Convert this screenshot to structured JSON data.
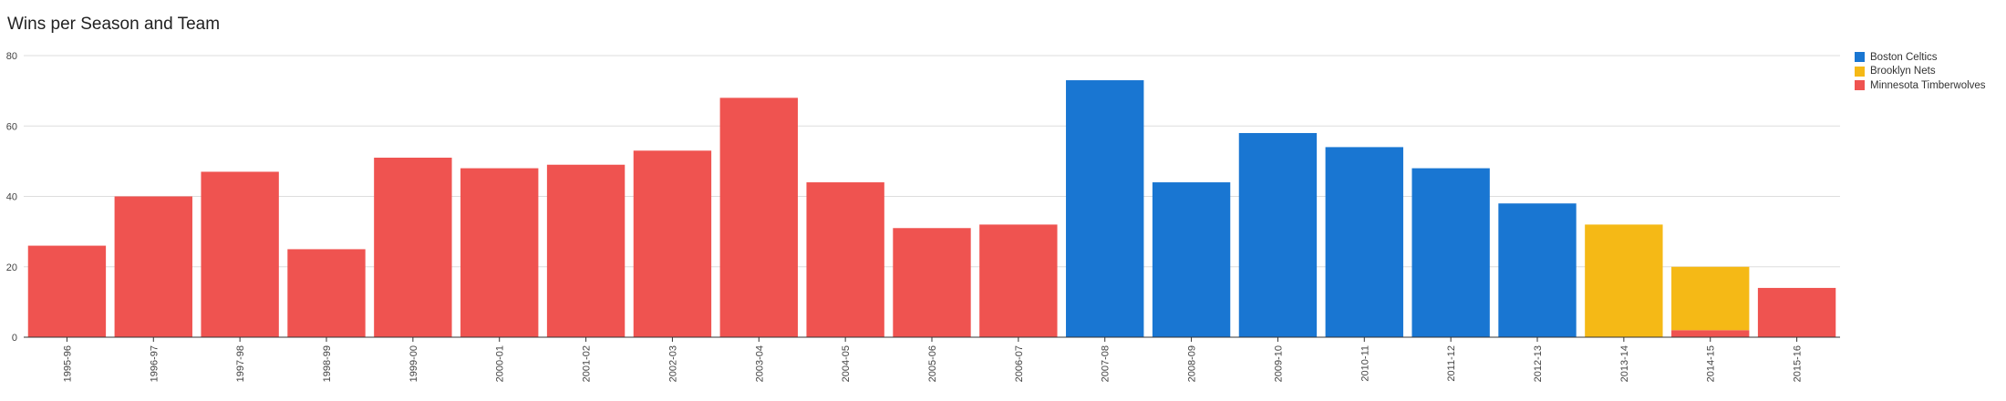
{
  "chart_data": {
    "type": "bar",
    "stacked": true,
    "title": "Wins per Season and Team",
    "xlabel": "",
    "ylabel": "",
    "ylim": [
      0,
      80
    ],
    "yticks": [
      "0",
      "20",
      "40",
      "60",
      "80"
    ],
    "grid": true,
    "legend_position": "top-right",
    "categories": [
      "1995-96",
      "1996-97",
      "1997-98",
      "1998-99",
      "1999-00",
      "2000-01",
      "2001-02",
      "2002-03",
      "2003-04",
      "2004-05",
      "2005-06",
      "2006-07",
      "2007-08",
      "2008-09",
      "2009-10",
      "2010-11",
      "2011-12",
      "2012-13",
      "2013-14",
      "2014-15",
      "2015-16"
    ],
    "series": [
      {
        "name": "Minnesota Timberwolves",
        "color": "#ef5350",
        "values": [
          26,
          40,
          47,
          25,
          51,
          48,
          49,
          53,
          68,
          44,
          31,
          32,
          0,
          0,
          0,
          0,
          0,
          0,
          0,
          2,
          14
        ]
      },
      {
        "name": "Boston Celtics",
        "color": "#1976d2",
        "values": [
          0,
          0,
          0,
          0,
          0,
          0,
          0,
          0,
          0,
          0,
          0,
          0,
          73,
          44,
          58,
          54,
          48,
          38,
          0,
          0,
          0
        ]
      },
      {
        "name": "Brooklyn Nets",
        "color": "#f5b916",
        "values": [
          0,
          0,
          0,
          0,
          0,
          0,
          0,
          0,
          0,
          0,
          0,
          0,
          0,
          0,
          0,
          0,
          0,
          0,
          32,
          18,
          0
        ]
      }
    ],
    "legend_order": [
      "Boston Celtics",
      "Brooklyn Nets",
      "Minnesota Timberwolves"
    ]
  }
}
